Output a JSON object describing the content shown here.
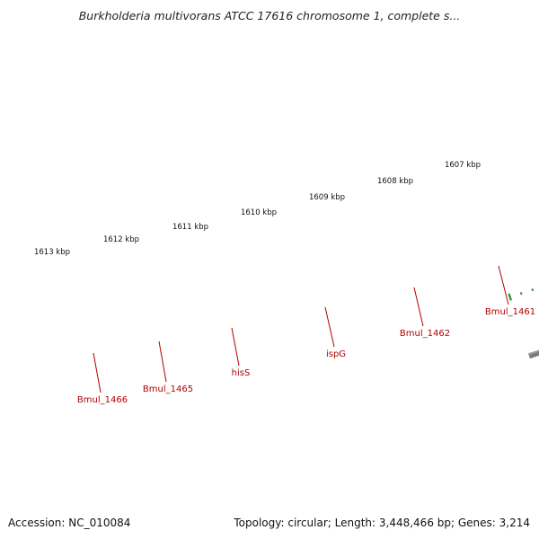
{
  "title": "Burkholderia multivorans ATCC 17616 chromosome 1, complete s...",
  "footer": {
    "accession": "Accession: NC_010084",
    "stats": "Topology: circular; Length: 3,448,466 bp; Genes: 3,214"
  },
  "colors": {
    "forward_cds": "#ee0000",
    "reverse_dark": "#555555",
    "reverse_light": "#bbbbbb",
    "reverse_pink": "#f07d7d",
    "reverse_purple": "#6a5acd",
    "reverse_cyan": "#1e9bd7",
    "backbone": "#7a7a7a",
    "ticks": "#2e8b2e",
    "label": "#b30000"
  },
  "scale": {
    "unit": "kbp",
    "labels": [
      "1613 kbp",
      "1612 kbp",
      "1611 kbp",
      "1610 kbp",
      "1609 kbp",
      "1608 kbp",
      "1607 kbp"
    ]
  },
  "gene_labels": [
    "Bmul_1466",
    "Bmul_1465",
    "hisS",
    "ispG",
    "Bmul_1462",
    "Bmul_1461"
  ]
}
